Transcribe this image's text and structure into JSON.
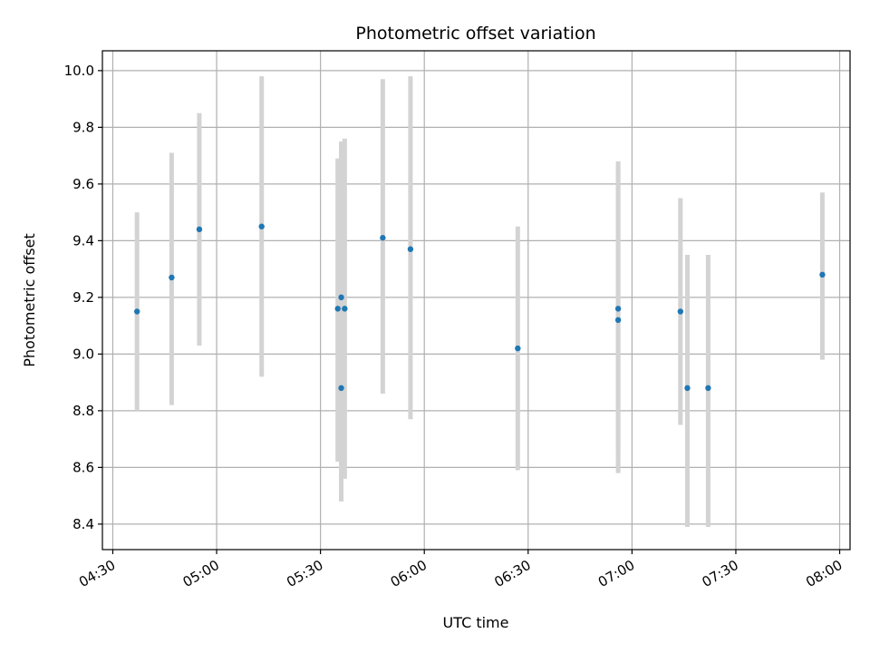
{
  "chart_data": {
    "type": "scatter",
    "title": "Photometric offset variation",
    "xlabel": "UTC time",
    "ylabel": "Photometric offset",
    "x_tick_labels": [
      "04:30",
      "05:00",
      "05:30",
      "06:00",
      "06:30",
      "07:00",
      "07:30",
      "08:00"
    ],
    "y_tick_labels": [
      "8.4",
      "8.6",
      "8.8",
      "9.0",
      "9.2",
      "9.4",
      "9.6",
      "9.8",
      "10.0"
    ],
    "xlim": [
      "04:27",
      "08:03"
    ],
    "ylim": [
      8.31,
      10.07
    ],
    "grid": true,
    "legend": "none",
    "errorbar_color": "#d3d3d3",
    "marker_color": "#1f77b4",
    "points": [
      {
        "x": "04:37",
        "y": 9.15,
        "ylow": 8.8,
        "yhigh": 9.5
      },
      {
        "x": "04:47",
        "y": 9.27,
        "ylow": 8.82,
        "yhigh": 9.71
      },
      {
        "x": "04:55",
        "y": 9.44,
        "ylow": 9.03,
        "yhigh": 9.85
      },
      {
        "x": "05:13",
        "y": 9.45,
        "ylow": 8.92,
        "yhigh": 9.98
      },
      {
        "x": "05:35",
        "y": 9.16,
        "ylow": 8.62,
        "yhigh": 9.69
      },
      {
        "x": "05:36",
        "y": 8.88,
        "ylow": 8.48,
        "yhigh": 9.27
      },
      {
        "x": "05:36",
        "y": 9.2,
        "ylow": 8.65,
        "yhigh": 9.75
      },
      {
        "x": "05:37",
        "y": 9.16,
        "ylow": 8.56,
        "yhigh": 9.76
      },
      {
        "x": "05:48",
        "y": 9.41,
        "ylow": 8.86,
        "yhigh": 9.97
      },
      {
        "x": "05:56",
        "y": 9.37,
        "ylow": 8.77,
        "yhigh": 9.98
      },
      {
        "x": "06:27",
        "y": 9.02,
        "ylow": 8.59,
        "yhigh": 9.45
      },
      {
        "x": "06:56",
        "y": 9.12,
        "ylow": 8.58,
        "yhigh": 9.66
      },
      {
        "x": "06:56",
        "y": 9.16,
        "ylow": 8.65,
        "yhigh": 9.68
      },
      {
        "x": "07:14",
        "y": 9.15,
        "ylow": 8.75,
        "yhigh": 9.55
      },
      {
        "x": "07:16",
        "y": 8.88,
        "ylow": 8.39,
        "yhigh": 9.35
      },
      {
        "x": "07:22",
        "y": 8.88,
        "ylow": 8.39,
        "yhigh": 9.35
      },
      {
        "x": "07:55",
        "y": 9.28,
        "ylow": 8.98,
        "yhigh": 9.57
      }
    ]
  }
}
